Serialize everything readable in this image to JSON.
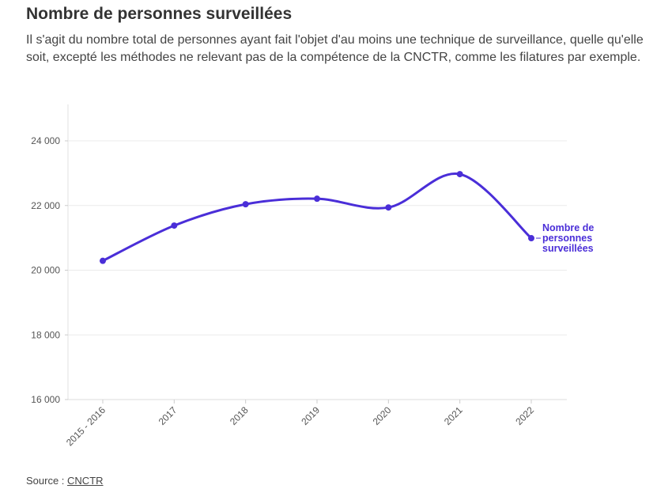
{
  "header": {
    "title": "Nombre de personnes surveillées",
    "subtitle": "Il s'agit du nombre total de personnes ayant fait l'objet d'au moins une technique de surveillance, quelle qu'elle soit, excepté les méthodes ne relevant pas de la compétence de la CNCTR, comme les filatures par exemple."
  },
  "footer": {
    "source_label": "Source : ",
    "source_link": "CNCTR"
  },
  "chart_data": {
    "type": "line",
    "title": "Nombre de personnes surveillées",
    "categories": [
      "2015 - 2016",
      "2017",
      "2018",
      "2019",
      "2020",
      "2021",
      "2022"
    ],
    "series": [
      {
        "name": "Nombre de personnes surveillées",
        "label_lines": [
          "Nombre de",
          "personnes",
          "surveillées"
        ],
        "values": [
          20290,
          21380,
          22040,
          22210,
          21940,
          22970,
          20990
        ],
        "color": "#4a2ed8"
      }
    ],
    "ylim": [
      16000,
      25000
    ],
    "yticks": [
      16000,
      18000,
      20000,
      22000,
      24000
    ],
    "ytick_labels": [
      "16 000",
      "18 000",
      "20 000",
      "22 000",
      "24 000"
    ],
    "grid": true,
    "xlabel": "",
    "ylabel": ""
  }
}
